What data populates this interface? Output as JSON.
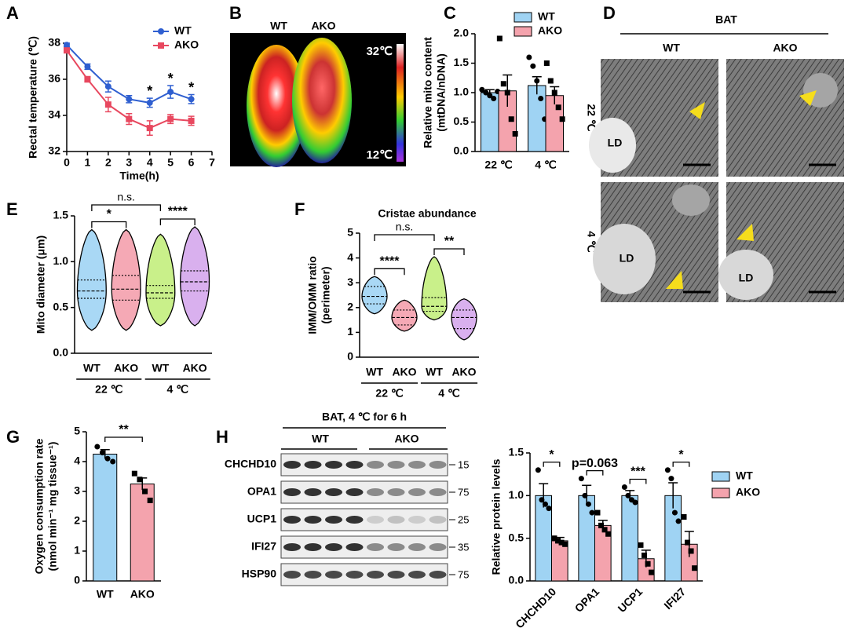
{
  "chart_data": [
    {
      "panel": "A",
      "type": "line",
      "xlabel": "Time(h)",
      "ylabel": "Rectal temperature (℃)",
      "x": [
        0,
        1,
        2,
        3,
        4,
        5,
        6
      ],
      "xlim": [
        0,
        7
      ],
      "xticks": [
        0,
        1,
        2,
        3,
        4,
        5,
        6,
        7
      ],
      "ylim": [
        32,
        38
      ],
      "yticks": [
        32,
        34,
        36,
        38
      ],
      "legend": "upper right",
      "series": [
        {
          "name": "WT",
          "color": "#2f5fd0",
          "marker": "circle",
          "values": [
            37.9,
            36.7,
            35.6,
            34.9,
            34.7,
            35.3,
            34.9
          ],
          "errors": [
            0.1,
            0.15,
            0.3,
            0.2,
            0.25,
            0.35,
            0.25
          ]
        },
        {
          "name": "AKO",
          "color": "#e8485f",
          "marker": "square",
          "values": [
            37.6,
            36.0,
            34.6,
            33.8,
            33.3,
            33.8,
            33.7
          ],
          "errors": [
            0.1,
            0.15,
            0.4,
            0.3,
            0.4,
            0.25,
            0.25
          ]
        }
      ],
      "annotations": [
        {
          "x": 4,
          "text": "*"
        },
        {
          "x": 5,
          "text": "*"
        },
        {
          "x": 6,
          "text": "*"
        }
      ]
    },
    {
      "panel": "C",
      "type": "bar",
      "ylabel": [
        "Relative mito content",
        "(mtDNA/nDNA)"
      ],
      "categories": [
        "22 ℃",
        "4 ℃"
      ],
      "ylim": [
        0,
        2
      ],
      "yticks": [
        {
          "value": 0,
          "label": "0.0"
        },
        0.5,
        {
          "value": 1,
          "label": "1.0"
        },
        1.5,
        {
          "value": 2,
          "label": "2.0"
        }
      ],
      "legend": "upper right",
      "series": [
        {
          "name": "WT",
          "color": "#9fd3f3",
          "marker": "circle",
          "values": [
            1.0,
            1.12
          ],
          "errors": [
            0.05,
            0.15
          ],
          "points": [
            [
              1.05,
              1.0,
              0.95,
              0.9,
              1.02
            ],
            [
              1.6,
              1.45,
              1.2,
              0.9,
              0.55
            ]
          ]
        },
        {
          "name": "AKO",
          "color": "#f4a3ad",
          "marker": "square",
          "values": [
            1.03,
            0.95
          ],
          "errors": [
            0.27,
            0.15
          ],
          "points": [
            [
              1.92,
              1.15,
              1.0,
              0.55,
              0.3
            ],
            [
              1.5,
              1.2,
              1.0,
              0.75,
              0.55
            ]
          ]
        }
      ]
    },
    {
      "panel": "E",
      "type": "violin",
      "ylabel": "Mito diameter (μm)",
      "categories": [
        "WT",
        "AKO",
        "WT",
        "AKO"
      ],
      "groups": [
        "22 ℃",
        "4 ℃"
      ],
      "colors": [
        "#a9d8f5",
        "#f5a9b5",
        "#c9f08a",
        "#d9b0ee"
      ],
      "ylim": [
        0,
        1.5
      ],
      "yticks": [
        {
          "value": 0,
          "label": "0.0"
        },
        0.5,
        {
          "value": 1,
          "label": "1.0"
        },
        1.5
      ],
      "min": [
        0.25,
        0.25,
        0.3,
        0.3
      ],
      "q1": [
        0.6,
        0.58,
        0.6,
        0.68
      ],
      "median": [
        0.68,
        0.7,
        0.66,
        0.78
      ],
      "q3": [
        0.8,
        0.85,
        0.74,
        0.9
      ],
      "max": [
        1.35,
        1.35,
        1.3,
        1.38
      ],
      "comparisons": [
        {
          "text": "*",
          "group": "22 ℃"
        },
        {
          "text": "****",
          "group": "4 ℃"
        },
        {
          "text": "n.s.",
          "across": "WT"
        }
      ]
    },
    {
      "panel": "F",
      "type": "violin",
      "title": "Cristae abundance",
      "ylabel": [
        "IMM/OMM ratio",
        "(perimeter)"
      ],
      "categories": [
        "WT",
        "AKO",
        "WT",
        "AKO"
      ],
      "groups": [
        "22 ℃",
        "4 ℃"
      ],
      "colors": [
        "#a9d8f5",
        "#f5a9b5",
        "#c9f08a",
        "#d9b0ee"
      ],
      "ylim": [
        0,
        5
      ],
      "yticks": [
        0,
        1,
        2,
        3,
        4,
        5
      ],
      "min": [
        1.75,
        1.05,
        1.5,
        0.7
      ],
      "q1": [
        2.15,
        1.3,
        1.85,
        1.15
      ],
      "median": [
        2.45,
        1.6,
        2.05,
        1.6
      ],
      "q3": [
        2.85,
        1.9,
        2.4,
        1.9
      ],
      "max": [
        3.25,
        2.3,
        4.05,
        2.35
      ],
      "comparisons": [
        {
          "text": "****",
          "group": "22 ℃"
        },
        {
          "text": "**",
          "group": "4 ℃"
        },
        {
          "text": "n.s.",
          "across": "WT"
        }
      ]
    },
    {
      "panel": "G",
      "type": "bar",
      "ylabel": [
        "Oxygen consumption rate",
        "(nmol min⁻¹ mg tissue⁻¹)"
      ],
      "categories": [
        "WT",
        "AKO"
      ],
      "ylim": [
        0,
        5
      ],
      "yticks": [
        0,
        1,
        2,
        3,
        4,
        5
      ],
      "colors": [
        "#9fd3f3",
        "#f4a3ad"
      ],
      "series": [
        {
          "markers": [
            "circle",
            "square"
          ],
          "values": [
            4.25,
            3.25
          ],
          "errors": [
            0.15,
            0.2
          ],
          "points": [
            [
              4.5,
              4.3,
              4.1,
              4.0
            ],
            [
              3.6,
              3.4,
              3.0,
              2.7
            ]
          ]
        }
      ],
      "annotations": [
        "**"
      ]
    },
    {
      "panel": "H",
      "type": "bar",
      "ylabel": "Relative protein levels",
      "categories": [
        "CHCHD10",
        "OPA1",
        "UCP1",
        "IFI27"
      ],
      "xtick_rotation": 45,
      "ylim": [
        0,
        1.5
      ],
      "yticks": [
        {
          "value": 0,
          "label": "0.0"
        },
        0.5,
        {
          "value": 1,
          "label": "1.0"
        },
        1.5
      ],
      "legend": "right",
      "series": [
        {
          "name": "WT",
          "color": "#9fd3f3",
          "marker": "circle",
          "values": [
            1.0,
            1.0,
            1.0,
            1.0
          ],
          "errors": [
            0.14,
            0.12,
            0.06,
            0.15
          ],
          "points": [
            [
              1.3,
              0.95,
              0.9,
              0.85
            ],
            [
              1.2,
              1.0,
              0.9,
              0.8
            ],
            [
              1.1,
              1.0,
              0.95,
              0.92
            ],
            [
              1.3,
              1.2,
              0.8,
              0.7
            ]
          ]
        },
        {
          "name": "AKO",
          "color": "#f4a3ad",
          "marker": "square",
          "values": [
            0.47,
            0.65,
            0.26,
            0.43
          ],
          "errors": [
            0.04,
            0.06,
            0.1,
            0.15
          ],
          "points": [
            [
              0.5,
              0.47,
              0.45,
              0.43
            ],
            [
              0.8,
              0.65,
              0.6,
              0.55
            ],
            [
              0.42,
              0.3,
              0.2,
              0.1
            ],
            [
              0.75,
              0.45,
              0.35,
              0.15
            ]
          ]
        }
      ],
      "annotations": [
        "*",
        "p=0.063",
        "***",
        "*"
      ]
    }
  ],
  "images": [
    {
      "panel": "B",
      "labels": [
        "WT",
        "AKO"
      ],
      "scale": [
        "32℃",
        "12℃"
      ]
    },
    {
      "panel": "D",
      "title": "BAT",
      "columns": [
        "WT",
        "AKO"
      ],
      "rows": [
        "22 ℃",
        "4 ℃"
      ],
      "annotations": [
        "LD",
        "LD",
        "LD"
      ]
    }
  ],
  "blot": {
    "panel": "H",
    "title": "BAT, 4 ℃ for 6 h",
    "groups": [
      "WT",
      "AKO"
    ],
    "proteins": [
      "CHCHD10",
      "OPA1",
      "UCP1",
      "IFI27",
      "HSP90"
    ],
    "sizes": [
      15,
      75,
      25,
      35,
      75
    ]
  }
}
